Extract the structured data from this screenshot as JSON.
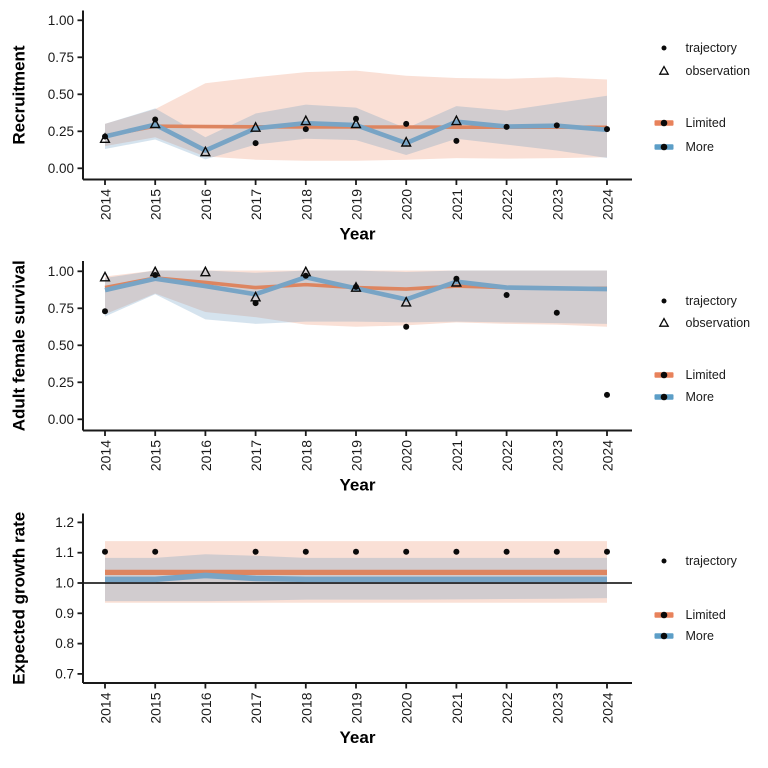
{
  "figure": {
    "background": "#FFFFFF",
    "colors": {
      "limited": "#E8825B",
      "more": "#5C9EC7",
      "limited_line": "#DD8560",
      "more_line": "#78A4C5",
      "limited_ribbon": "rgba(235,130,92,0.25)",
      "more_ribbon": "rgba(91,148,190,0.26)",
      "marker": "#0A0A0A",
      "axis": "#1A1A1A",
      "text": "#1A1A1A",
      "reference_line": "#000000"
    }
  },
  "chart_data": [
    {
      "type": "line",
      "ylabel": "Recruitment",
      "xlabel": "Year",
      "x": [
        2014,
        2015,
        2016,
        2017,
        2018,
        2019,
        2020,
        2021,
        2022,
        2023,
        2024
      ],
      "xtick_labels": [
        "2014",
        "2015",
        "2016",
        "2017",
        "2018",
        "2019",
        "2020",
        "2021",
        "2022",
        "2023",
        "2024"
      ],
      "ylim": [
        0,
        1
      ],
      "yticks": [
        0,
        0.25,
        0.5,
        0.75,
        1.0
      ],
      "ytick_labels": [
        "0.00",
        "0.25",
        "0.50",
        "0.75",
        "1.00"
      ],
      "grid": false,
      "legend": [
        "trajectory",
        "observation",
        "Limited",
        "More"
      ],
      "series": [
        {
          "name": "Limited",
          "line": [
            0.22,
            0.285,
            0.282,
            0.28,
            0.279,
            0.279,
            0.279,
            0.278,
            0.278,
            0.278,
            0.277
          ],
          "ribbon_lo": [
            0.15,
            0.21,
            0.08,
            0.058,
            0.051,
            0.051,
            0.058,
            0.069,
            0.065,
            0.069,
            0.075
          ],
          "ribbon_hi": [
            0.3,
            0.4,
            0.575,
            0.615,
            0.65,
            0.66,
            0.625,
            0.61,
            0.605,
            0.615,
            0.6
          ]
        },
        {
          "name": "More",
          "line": [
            0.215,
            0.295,
            0.12,
            0.27,
            0.305,
            0.292,
            0.17,
            0.315,
            0.282,
            0.288,
            0.26
          ],
          "ribbon_lo": [
            0.13,
            0.195,
            0.06,
            0.16,
            0.2,
            0.19,
            0.09,
            0.2,
            0.16,
            0.12,
            0.07
          ],
          "ribbon_hi": [
            0.3,
            0.405,
            0.21,
            0.37,
            0.43,
            0.41,
            0.27,
            0.42,
            0.39,
            0.44,
            0.49
          ]
        }
      ],
      "points": [
        {
          "name": "trajectory",
          "x": [
            2014,
            2015,
            2017,
            2018,
            2019,
            2020,
            2021,
            2022,
            2023,
            2024
          ],
          "y": [
            0.215,
            0.33,
            0.17,
            0.265,
            0.335,
            0.3,
            0.185,
            0.28,
            0.29,
            0.265
          ]
        },
        {
          "name": "observation",
          "x": [
            2014,
            2015,
            2016,
            2017,
            2018,
            2019,
            2020,
            2021
          ],
          "y": [
            0.2,
            0.3,
            0.11,
            0.275,
            0.32,
            0.3,
            0.175,
            0.32
          ]
        }
      ]
    },
    {
      "type": "line",
      "ylabel": "Adult female survival",
      "xlabel": "Year",
      "x": [
        2014,
        2015,
        2016,
        2017,
        2018,
        2019,
        2020,
        2021,
        2022,
        2023,
        2024
      ],
      "xtick_labels": [
        "2014",
        "2015",
        "2016",
        "2017",
        "2018",
        "2019",
        "2020",
        "2021",
        "2022",
        "2023",
        "2024"
      ],
      "ylim": [
        0,
        1
      ],
      "yticks": [
        0,
        0.25,
        0.5,
        0.75,
        1.0
      ],
      "ytick_labels": [
        "0.00",
        "0.25",
        "0.50",
        "0.75",
        "1.00"
      ],
      "grid": false,
      "legend": [
        "trajectory",
        "observation",
        "Limited",
        "More"
      ],
      "series": [
        {
          "name": "Limited",
          "line": [
            0.89,
            0.955,
            0.925,
            0.89,
            0.91,
            0.89,
            0.88,
            0.9,
            0.89,
            0.885,
            0.885
          ],
          "ribbon_lo": [
            0.71,
            0.85,
            0.725,
            0.69,
            0.64,
            0.625,
            0.635,
            0.655,
            0.645,
            0.64,
            0.625
          ],
          "ribbon_hi": [
            0.965,
            1.005,
            1.005,
            1.005,
            1.005,
            1.005,
            1.005,
            1.005,
            1.005,
            1.005,
            1.005
          ]
        },
        {
          "name": "More",
          "line": [
            0.873,
            0.95,
            0.9,
            0.845,
            0.96,
            0.885,
            0.81,
            0.93,
            0.89,
            0.885,
            0.88
          ],
          "ribbon_lo": [
            0.695,
            0.845,
            0.675,
            0.645,
            0.66,
            0.66,
            0.655,
            0.66,
            0.655,
            0.65,
            0.645
          ],
          "ribbon_hi": [
            0.955,
            1.005,
            1.005,
            0.99,
            1.005,
            1.005,
            0.995,
            1.005,
            1.005,
            1.005,
            1.005
          ]
        }
      ],
      "points": [
        {
          "name": "trajectory",
          "x": [
            2014,
            2015,
            2017,
            2018,
            2019,
            2020,
            2021,
            2022,
            2023,
            2024
          ],
          "y": [
            0.73,
            0.975,
            0.785,
            0.97,
            0.895,
            0.625,
            0.95,
            0.84,
            0.72,
            0.165
          ]
        },
        {
          "name": "observation",
          "x": [
            2014,
            2015,
            2016,
            2017,
            2018,
            2019,
            2020,
            2021
          ],
          "y": [
            0.96,
            0.995,
            0.995,
            0.825,
            0.995,
            0.89,
            0.79,
            0.925
          ]
        }
      ]
    },
    {
      "type": "line",
      "ylabel": "Expected growth rate",
      "xlabel": "Year",
      "x": [
        2014,
        2015,
        2016,
        2017,
        2018,
        2019,
        2020,
        2021,
        2022,
        2023,
        2024
      ],
      "xtick_labels": [
        "2014",
        "2015",
        "2016",
        "2017",
        "2018",
        "2019",
        "2020",
        "2021",
        "2022",
        "2023",
        "2024"
      ],
      "ylim": [
        0.7,
        1.2
      ],
      "yticks": [
        0.7,
        0.8,
        0.9,
        1.0,
        1.1,
        1.2
      ],
      "ytick_labels": [
        "0.7",
        "0.8",
        "0.9",
        "1.0",
        "1.1",
        "1.2"
      ],
      "grid": false,
      "reference_line": 1.0,
      "legend": [
        "trajectory",
        "Limited",
        "More"
      ],
      "series": [
        {
          "name": "Limited",
          "line": [
            1.035,
            1.035,
            1.035,
            1.035,
            1.035,
            1.035,
            1.035,
            1.035,
            1.035,
            1.035,
            1.035
          ],
          "ribbon_lo": [
            0.935,
            0.935,
            0.935,
            0.935,
            0.935,
            0.935,
            0.935,
            0.935,
            0.935,
            0.935,
            0.935
          ],
          "ribbon_hi": [
            1.138,
            1.138,
            1.138,
            1.138,
            1.138,
            1.138,
            1.138,
            1.138,
            1.138,
            1.138,
            1.138
          ]
        },
        {
          "name": "More",
          "line": [
            1.012,
            1.012,
            1.025,
            1.015,
            1.012,
            1.012,
            1.012,
            1.012,
            1.012,
            1.012,
            1.012
          ],
          "ribbon_lo": [
            0.94,
            0.94,
            0.94,
            0.942,
            0.945,
            0.945,
            0.945,
            0.946,
            0.947,
            0.948,
            0.95
          ],
          "ribbon_hi": [
            1.083,
            1.083,
            1.095,
            1.09,
            1.083,
            1.083,
            1.083,
            1.083,
            1.083,
            1.083,
            1.083
          ]
        }
      ],
      "points": [
        {
          "name": "trajectory",
          "x": [
            2014,
            2015,
            2017,
            2018,
            2019,
            2020,
            2021,
            2022,
            2023,
            2024
          ],
          "y": [
            1.103,
            1.103,
            1.103,
            1.103,
            1.103,
            1.103,
            1.103,
            1.103,
            1.103,
            1.103
          ]
        }
      ]
    }
  ]
}
